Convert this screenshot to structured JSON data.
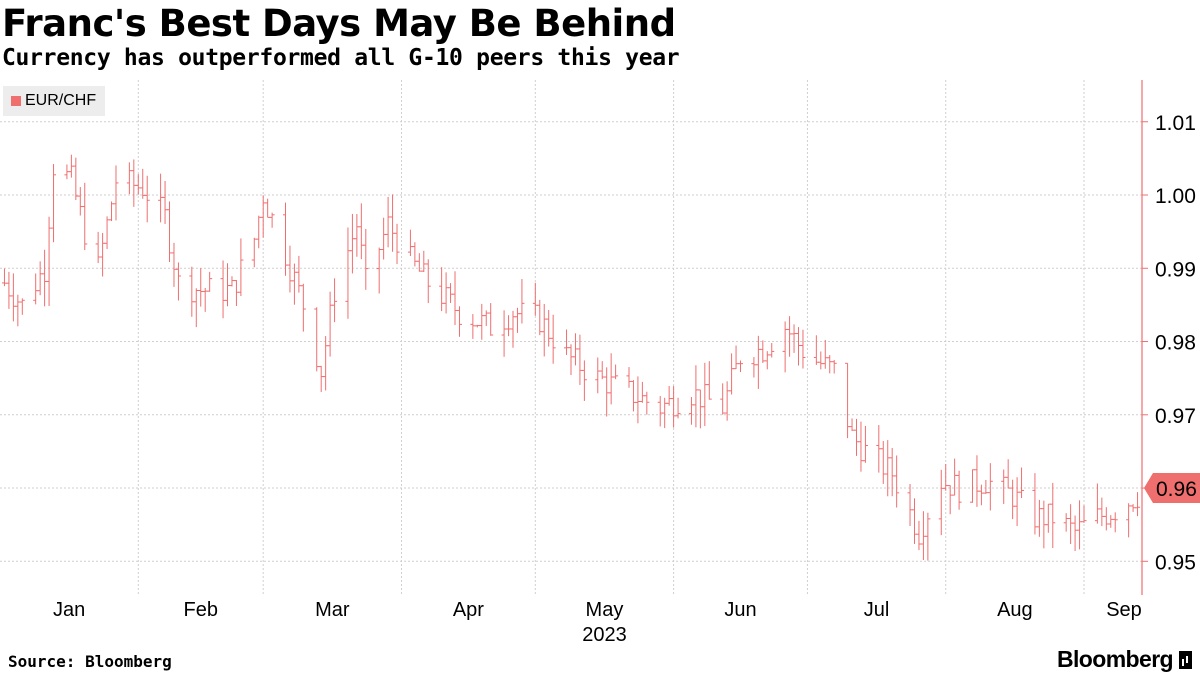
{
  "header": {
    "title": "Franc's Best Days May Be Behind",
    "subtitle": "Currency has outperformed all G-10 peers this year"
  },
  "legend": {
    "label": "EUR/CHF"
  },
  "footer": {
    "source": "Source: Bloomberg",
    "brand": "Bloomberg"
  },
  "colors": {
    "series": "#ef6e6e",
    "grid": "#cfcfcf",
    "axis": "#ef6e6e",
    "last_value_box": "#ef6e6e"
  },
  "chart_data": {
    "type": "ohlc",
    "title": "Franc's Best Days May Be Behind",
    "subtitle": "Currency has outperformed all G-10 peers this year",
    "xlabel": "2023",
    "ylabel": "",
    "y_axis_position": "right",
    "ylim": [
      0.9454,
      1.0157
    ],
    "yticks": [
      0.95,
      0.96,
      0.97,
      0.98,
      0.99,
      1.0,
      1.01
    ],
    "ytick_labels": [
      "0.95",
      "0.96",
      "0.97",
      "0.98",
      "0.99",
      "1.00",
      "1.01"
    ],
    "x_range": [
      "2023-01-01",
      "2023-09-14"
    ],
    "month_ticks": [
      {
        "label": "Jan",
        "date": "2023-01-01"
      },
      {
        "label": "Feb",
        "date": "2023-02-01"
      },
      {
        "label": "Mar",
        "date": "2023-03-01"
      },
      {
        "label": "Apr",
        "date": "2023-04-01"
      },
      {
        "label": "May",
        "date": "2023-05-01"
      },
      {
        "label": "Jun",
        "date": "2023-06-01"
      },
      {
        "label": "Jul",
        "date": "2023-07-01"
      },
      {
        "label": "Aug",
        "date": "2023-08-01"
      },
      {
        "label": "Sep",
        "date": "2023-09-01"
      }
    ],
    "year_label": "2023",
    "grid": true,
    "legend_position": "top-left",
    "last_value": 0.96,
    "last_value_label": "0.96",
    "series": [
      {
        "name": "EUR/CHF",
        "anchors": [
          [
            "2023-01-02",
            0.988
          ],
          [
            "2023-01-06",
            0.985
          ],
          [
            "2023-01-11",
            0.99
          ],
          [
            "2023-01-13",
            1.004
          ],
          [
            "2023-01-17",
            1.002
          ],
          [
            "2023-01-20",
            0.995
          ],
          [
            "2023-01-23",
            0.99
          ],
          [
            "2023-01-27",
            1.002
          ],
          [
            "2023-02-02",
            1.001
          ],
          [
            "2023-02-07",
            0.997
          ],
          [
            "2023-02-10",
            0.988
          ],
          [
            "2023-02-15",
            0.987
          ],
          [
            "2023-02-22",
            0.987
          ],
          [
            "2023-02-27",
            0.994
          ],
          [
            "2023-03-01",
            1.0
          ],
          [
            "2023-03-06",
            0.992
          ],
          [
            "2023-03-10",
            0.985
          ],
          [
            "2023-03-14",
            0.976
          ],
          [
            "2023-03-17",
            0.987
          ],
          [
            "2023-03-22",
            0.996
          ],
          [
            "2023-03-24",
            0.988
          ],
          [
            "2023-03-29",
            0.996
          ],
          [
            "2023-04-03",
            0.991
          ],
          [
            "2023-04-07",
            0.988
          ],
          [
            "2023-04-14",
            0.984
          ],
          [
            "2023-04-21",
            0.982
          ],
          [
            "2023-04-26",
            0.984
          ],
          [
            "2023-05-02",
            0.983
          ],
          [
            "2023-05-08",
            0.978
          ],
          [
            "2023-05-15",
            0.975
          ],
          [
            "2023-05-22",
            0.973
          ],
          [
            "2023-05-29",
            0.971
          ],
          [
            "2023-06-05",
            0.973
          ],
          [
            "2023-06-12",
            0.971
          ],
          [
            "2023-06-16",
            0.978
          ],
          [
            "2023-06-21",
            0.979
          ],
          [
            "2023-06-26",
            0.982
          ],
          [
            "2023-07-01",
            0.978
          ],
          [
            "2023-07-07",
            0.976
          ],
          [
            "2023-07-11",
            0.967
          ],
          [
            "2023-07-14",
            0.965
          ],
          [
            "2023-07-20",
            0.962
          ],
          [
            "2023-07-26",
            0.954
          ],
          [
            "2023-07-31",
            0.961
          ],
          [
            "2023-08-04",
            0.96
          ],
          [
            "2023-08-10",
            0.961
          ],
          [
            "2023-08-16",
            0.959
          ],
          [
            "2023-08-21",
            0.956
          ],
          [
            "2023-08-25",
            0.956
          ],
          [
            "2023-08-30",
            0.954
          ],
          [
            "2023-09-04",
            0.956
          ],
          [
            "2023-09-08",
            0.957
          ],
          [
            "2023-09-13",
            0.959
          ]
        ]
      }
    ]
  }
}
